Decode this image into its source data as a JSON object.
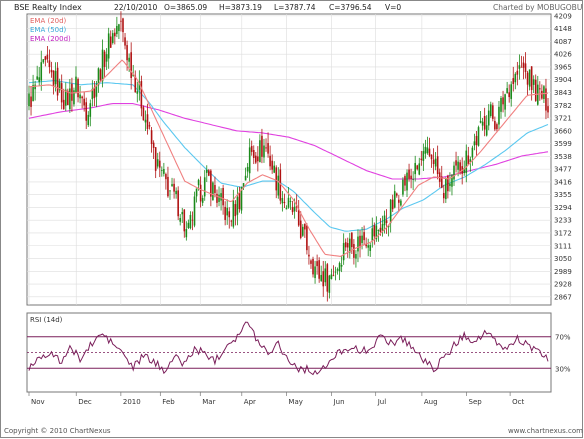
{
  "chart_data": [
    {
      "type": "candlestick",
      "title": "BSE Realty Index",
      "info": {
        "date": "22/10/2010",
        "open": "O=3865.09",
        "high": "H=3873.19",
        "low": "L=3787.74",
        "close": "C=3796.54",
        "volume": "V=0"
      },
      "credit": "Charted by MOBUGOBU",
      "legend": [
        "EMA (20d)",
        "EMA (50d)",
        "EMA (200d)"
      ],
      "colors": {
        "up": "#1a8a1a",
        "down": "#b01212",
        "ema20": "#f08080",
        "ema50": "#5bc8f0",
        "ema200": "#e040e0",
        "rsi": "#7a1e5a",
        "grid": "#dddddd"
      },
      "y_ticks": [
        "4209",
        "4148",
        "4087",
        "4026",
        "3965",
        "3904",
        "3843",
        "3782",
        "3721",
        "3660",
        "3599",
        "3538",
        "3477",
        "3416",
        "3355",
        "3294",
        "3233",
        "3172",
        "3111",
        "3050",
        "2989",
        "2928",
        "2867"
      ],
      "y_tick_values": [
        4209,
        4148,
        4087,
        4026,
        3965,
        3904,
        3843,
        3782,
        3721,
        3660,
        3599,
        3538,
        3477,
        3416,
        3355,
        3294,
        3233,
        3172,
        3111,
        3050,
        2989,
        2928,
        2867
      ],
      "ylim": [
        2828,
        4218
      ],
      "x_tick_labels": [
        "Nov",
        "Dec",
        "2010",
        "Feb",
        "Mar",
        "Apr",
        "May",
        "Jun",
        "Jul",
        "Aug",
        "Sep",
        "Oct"
      ],
      "x_tick_positions": [
        0.0,
        0.091,
        0.177,
        0.253,
        0.33,
        0.41,
        0.496,
        0.583,
        0.668,
        0.757,
        0.843,
        0.927
      ],
      "close_profile": [
        [
          0.0,
          3800
        ],
        [
          0.03,
          3965
        ],
        [
          0.05,
          3900
        ],
        [
          0.07,
          3800
        ],
        [
          0.09,
          3880
        ],
        [
          0.11,
          3760
        ],
        [
          0.13,
          3900
        ],
        [
          0.155,
          4090
        ],
        [
          0.175,
          4180
        ],
        [
          0.19,
          4020
        ],
        [
          0.215,
          3820
        ],
        [
          0.245,
          3500
        ],
        [
          0.27,
          3380
        ],
        [
          0.29,
          3300
        ],
        [
          0.305,
          3150
        ],
        [
          0.325,
          3360
        ],
        [
          0.345,
          3430
        ],
        [
          0.365,
          3330
        ],
        [
          0.385,
          3240
        ],
        [
          0.405,
          3330
        ],
        [
          0.425,
          3550
        ],
        [
          0.44,
          3560
        ],
        [
          0.455,
          3590
        ],
        [
          0.475,
          3440
        ],
        [
          0.495,
          3310
        ],
        [
          0.51,
          3270
        ],
        [
          0.53,
          3150
        ],
        [
          0.555,
          2980
        ],
        [
          0.575,
          2950
        ],
        [
          0.595,
          3020
        ],
        [
          0.61,
          3130
        ],
        [
          0.625,
          3110
        ],
        [
          0.645,
          3150
        ],
        [
          0.665,
          3170
        ],
        [
          0.69,
          3240
        ],
        [
          0.71,
          3360
        ],
        [
          0.725,
          3420
        ],
        [
          0.745,
          3460
        ],
        [
          0.76,
          3530
        ],
        [
          0.78,
          3540
        ],
        [
          0.795,
          3360
        ],
        [
          0.81,
          3400
        ],
        [
          0.83,
          3490
        ],
        [
          0.85,
          3560
        ],
        [
          0.87,
          3660
        ],
        [
          0.885,
          3760
        ],
        [
          0.9,
          3700
        ],
        [
          0.92,
          3860
        ],
        [
          0.935,
          3910
        ],
        [
          0.95,
          3960
        ],
        [
          0.965,
          3900
        ],
        [
          0.98,
          3840
        ],
        [
          1.0,
          3800
        ]
      ],
      "ema20_profile": [
        [
          0.0,
          3870
        ],
        [
          0.04,
          3880
        ],
        [
          0.08,
          3840
        ],
        [
          0.12,
          3850
        ],
        [
          0.16,
          3950
        ],
        [
          0.18,
          4000
        ],
        [
          0.21,
          3900
        ],
        [
          0.24,
          3740
        ],
        [
          0.27,
          3580
        ],
        [
          0.3,
          3420
        ],
        [
          0.33,
          3380
        ],
        [
          0.36,
          3350
        ],
        [
          0.39,
          3320
        ],
        [
          0.42,
          3410
        ],
        [
          0.45,
          3450
        ],
        [
          0.48,
          3420
        ],
        [
          0.51,
          3330
        ],
        [
          0.54,
          3190
        ],
        [
          0.57,
          3070
        ],
        [
          0.6,
          3060
        ],
        [
          0.63,
          3100
        ],
        [
          0.66,
          3130
        ],
        [
          0.69,
          3200
        ],
        [
          0.72,
          3300
        ],
        [
          0.75,
          3400
        ],
        [
          0.78,
          3440
        ],
        [
          0.81,
          3430
        ],
        [
          0.84,
          3480
        ],
        [
          0.87,
          3560
        ],
        [
          0.9,
          3650
        ],
        [
          0.93,
          3740
        ],
        [
          0.96,
          3830
        ],
        [
          1.0,
          3840
        ]
      ],
      "ema50_profile": [
        [
          0.0,
          3890
        ],
        [
          0.05,
          3900
        ],
        [
          0.1,
          3880
        ],
        [
          0.15,
          3890
        ],
        [
          0.2,
          3880
        ],
        [
          0.23,
          3800
        ],
        [
          0.26,
          3700
        ],
        [
          0.3,
          3580
        ],
        [
          0.34,
          3480
        ],
        [
          0.37,
          3410
        ],
        [
          0.41,
          3390
        ],
        [
          0.45,
          3420
        ],
        [
          0.48,
          3420
        ],
        [
          0.51,
          3370
        ],
        [
          0.55,
          3270
        ],
        [
          0.58,
          3200
        ],
        [
          0.61,
          3180
        ],
        [
          0.65,
          3190
        ],
        [
          0.69,
          3240
        ],
        [
          0.72,
          3290
        ],
        [
          0.76,
          3330
        ],
        [
          0.8,
          3400
        ],
        [
          0.84,
          3440
        ],
        [
          0.88,
          3500
        ],
        [
          0.92,
          3570
        ],
        [
          0.96,
          3650
        ],
        [
          1.0,
          3690
        ]
      ],
      "ema200_profile": [
        [
          0.0,
          3720
        ],
        [
          0.06,
          3750
        ],
        [
          0.12,
          3770
        ],
        [
          0.16,
          3790
        ],
        [
          0.2,
          3790
        ],
        [
          0.25,
          3760
        ],
        [
          0.3,
          3720
        ],
        [
          0.35,
          3690
        ],
        [
          0.4,
          3660
        ],
        [
          0.45,
          3650
        ],
        [
          0.5,
          3630
        ],
        [
          0.55,
          3590
        ],
        [
          0.6,
          3530
        ],
        [
          0.65,
          3470
        ],
        [
          0.7,
          3430
        ],
        [
          0.75,
          3430
        ],
        [
          0.8,
          3440
        ],
        [
          0.85,
          3470
        ],
        [
          0.9,
          3500
        ],
        [
          0.95,
          3540
        ],
        [
          1.0,
          3560
        ]
      ],
      "rsi": {
        "label": "RSI (14d)",
        "levels": [
          "70%",
          "30%"
        ],
        "level_values": [
          70,
          30
        ],
        "range": [
          0,
          100
        ],
        "profile": [
          [
            0.0,
            30
          ],
          [
            0.02,
            45
          ],
          [
            0.04,
            50
          ],
          [
            0.06,
            38
          ],
          [
            0.08,
            55
          ],
          [
            0.1,
            42
          ],
          [
            0.12,
            60
          ],
          [
            0.14,
            74
          ],
          [
            0.16,
            62
          ],
          [
            0.18,
            50
          ],
          [
            0.2,
            30
          ],
          [
            0.22,
            46
          ],
          [
            0.24,
            38
          ],
          [
            0.26,
            28
          ],
          [
            0.28,
            44
          ],
          [
            0.3,
            36
          ],
          [
            0.32,
            55
          ],
          [
            0.34,
            48
          ],
          [
            0.36,
            40
          ],
          [
            0.38,
            60
          ],
          [
            0.4,
            70
          ],
          [
            0.42,
            88
          ],
          [
            0.44,
            66
          ],
          [
            0.46,
            50
          ],
          [
            0.48,
            62
          ],
          [
            0.5,
            40
          ],
          [
            0.52,
            30
          ],
          [
            0.54,
            28
          ],
          [
            0.56,
            24
          ],
          [
            0.58,
            38
          ],
          [
            0.6,
            52
          ],
          [
            0.62,
            58
          ],
          [
            0.64,
            50
          ],
          [
            0.66,
            58
          ],
          [
            0.68,
            70
          ],
          [
            0.7,
            62
          ],
          [
            0.72,
            68
          ],
          [
            0.74,
            56
          ],
          [
            0.76,
            40
          ],
          [
            0.78,
            30
          ],
          [
            0.8,
            42
          ],
          [
            0.82,
            60
          ],
          [
            0.84,
            72
          ],
          [
            0.86,
            64
          ],
          [
            0.88,
            76
          ],
          [
            0.9,
            62
          ],
          [
            0.92,
            54
          ],
          [
            0.94,
            68
          ],
          [
            0.96,
            60
          ],
          [
            0.98,
            50
          ],
          [
            1.0,
            42
          ]
        ]
      }
    }
  ],
  "footer": {
    "copyright": "Copyright © 2010 ChartNexus",
    "site": "www.chartnexus.com"
  }
}
